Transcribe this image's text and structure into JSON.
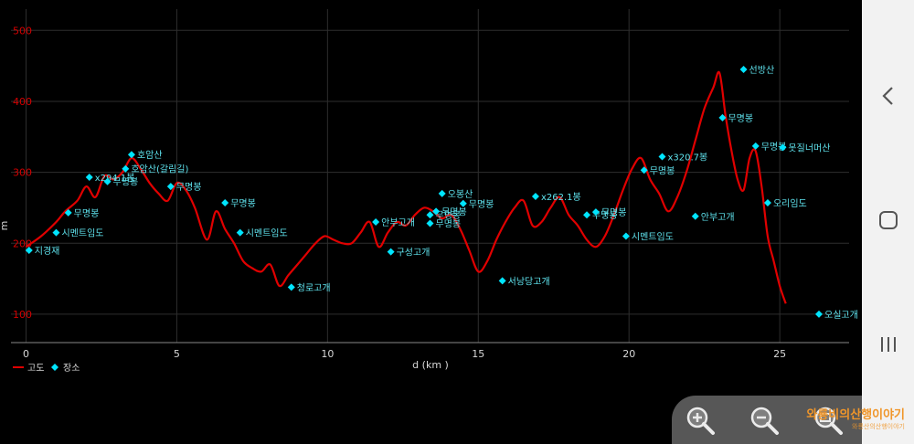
{
  "chart_data": {
    "type": "line",
    "xlabel": "d (km )",
    "ylabel": "m",
    "xlim": [
      -0.5,
      27.3
    ],
    "ylim": [
      60,
      530
    ],
    "x_ticks": [
      "0",
      "5",
      "10",
      "15",
      "20",
      "25"
    ],
    "y_ticks": [
      "100",
      "200",
      "300",
      "400",
      "500"
    ],
    "grid": true,
    "legend": [
      {
        "label": "고도",
        "color": "#e00000",
        "marker": "line"
      },
      {
        "label": "장소",
        "color": "#00e5ff",
        "marker": "diamond"
      }
    ],
    "legend_position": "bottom-left",
    "series": [
      {
        "name": "고도",
        "color": "#e00000",
        "x": [
          0,
          0.5,
          1.0,
          1.3,
          1.7,
          2.0,
          2.3,
          2.6,
          2.9,
          3.2,
          3.5,
          3.8,
          4.1,
          4.4,
          4.7,
          5.0,
          5.3,
          5.6,
          6.0,
          6.3,
          6.6,
          6.9,
          7.2,
          7.5,
          7.8,
          8.1,
          8.4,
          8.7,
          9.0,
          9.3,
          9.6,
          9.9,
          10.2,
          10.5,
          10.8,
          11.1,
          11.4,
          11.7,
          12.0,
          12.3,
          12.6,
          12.9,
          13.2,
          13.5,
          13.8,
          14.1,
          14.4,
          14.7,
          15.0,
          15.3,
          15.6,
          15.9,
          16.2,
          16.5,
          16.8,
          17.1,
          17.4,
          17.7,
          18.0,
          18.3,
          18.6,
          18.9,
          19.2,
          19.5,
          19.8,
          20.1,
          20.4,
          20.7,
          21.0,
          21.3,
          21.6,
          21.9,
          22.2,
          22.5,
          22.8,
          23.0,
          23.2,
          23.4,
          23.6,
          23.8,
          24.0,
          24.2,
          24.4,
          24.6,
          24.8,
          25.0,
          25.2
        ],
        "y": [
          195,
          210,
          230,
          245,
          260,
          280,
          265,
          295,
          290,
          300,
          320,
          305,
          285,
          270,
          260,
          285,
          275,
          250,
          205,
          245,
          220,
          200,
          175,
          165,
          160,
          170,
          140,
          155,
          170,
          185,
          200,
          210,
          205,
          200,
          200,
          215,
          230,
          195,
          215,
          230,
          225,
          240,
          250,
          245,
          235,
          240,
          220,
          190,
          160,
          175,
          205,
          230,
          250,
          260,
          225,
          230,
          250,
          265,
          240,
          225,
          205,
          195,
          210,
          240,
          275,
          305,
          320,
          290,
          270,
          245,
          265,
          300,
          345,
          390,
          420,
          440,
          380,
          330,
          290,
          275,
          320,
          330,
          280,
          210,
          175,
          140,
          115
        ]
      }
    ],
    "places": [
      {
        "x": 0.1,
        "y": 190,
        "label": "지경재"
      },
      {
        "x": 1.0,
        "y": 215,
        "label": "시멘트임도"
      },
      {
        "x": 1.4,
        "y": 243,
        "label": "무명봉"
      },
      {
        "x": 2.1,
        "y": 293,
        "label": "x294.1봉"
      },
      {
        "x": 2.7,
        "y": 287,
        "label": "무명봉"
      },
      {
        "x": 3.3,
        "y": 305,
        "label": "호암산(갈림길)"
      },
      {
        "x": 3.5,
        "y": 325,
        "label": "호암산"
      },
      {
        "x": 4.8,
        "y": 280,
        "label": "무명봉"
      },
      {
        "x": 6.6,
        "y": 257,
        "label": "무명봉"
      },
      {
        "x": 7.1,
        "y": 215,
        "label": "시멘트임도"
      },
      {
        "x": 8.8,
        "y": 138,
        "label": "청로고개"
      },
      {
        "x": 11.6,
        "y": 230,
        "label": "안부고개"
      },
      {
        "x": 12.1,
        "y": 188,
        "label": "구성고개"
      },
      {
        "x": 13.4,
        "y": 240,
        "label": "무명봉"
      },
      {
        "x": 13.6,
        "y": 245,
        "label": "무명봉"
      },
      {
        "x": 13.4,
        "y": 228,
        "label": "무명봉"
      },
      {
        "x": 13.8,
        "y": 270,
        "label": "오봉산"
      },
      {
        "x": 14.5,
        "y": 256,
        "label": "무명봉"
      },
      {
        "x": 15.8,
        "y": 147,
        "label": "서낭당고개"
      },
      {
        "x": 16.9,
        "y": 266,
        "label": "x262.1봉"
      },
      {
        "x": 18.6,
        "y": 240,
        "label": "무명봉"
      },
      {
        "x": 18.9,
        "y": 244,
        "label": "무명봉"
      },
      {
        "x": 19.9,
        "y": 210,
        "label": "시멘트임도"
      },
      {
        "x": 20.5,
        "y": 303,
        "label": "무명봉"
      },
      {
        "x": 21.1,
        "y": 322,
        "label": "x320.7봉"
      },
      {
        "x": 22.2,
        "y": 238,
        "label": "안부고개"
      },
      {
        "x": 23.1,
        "y": 377,
        "label": "무명봉"
      },
      {
        "x": 23.8,
        "y": 445,
        "label": "선방산"
      },
      {
        "x": 24.2,
        "y": 337,
        "label": "무명봉"
      },
      {
        "x": 24.6,
        "y": 257,
        "label": "오리임도"
      },
      {
        "x": 25.1,
        "y": 335,
        "label": "못질너머산"
      },
      {
        "x": 26.3,
        "y": 100,
        "label": "오실고개"
      }
    ]
  },
  "zoom": {
    "zoom_in_label": "확대",
    "zoom_out_label": "축소",
    "zoom_reset_label": "전체보기"
  },
  "watermark": {
    "main": "와룡비의산행이야기",
    "sub": "와룡산의산행이야기"
  },
  "nav": {
    "back": "뒤로",
    "home": "홈",
    "recents": "최근 앱"
  }
}
